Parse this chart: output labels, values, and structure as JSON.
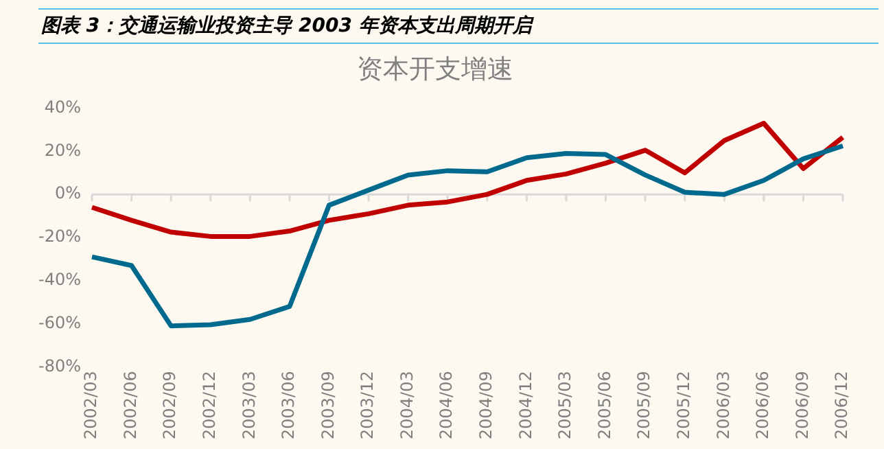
{
  "chart_data": {
    "type": "line",
    "title": "资本开支增速",
    "annotations": [
      "图表 3：交通运输业投资主导 2003 年资本支出周期开启"
    ],
    "categories": [
      "2002/03",
      "2002/06",
      "2002/09",
      "2002/12",
      "2003/03",
      "2003/06",
      "2003/09",
      "2003/12",
      "2004/03",
      "2004/06",
      "2004/09",
      "2004/12",
      "2005/03",
      "2005/06",
      "2005/09",
      "2005/12",
      "2006/03",
      "2006/06",
      "2006/09",
      "2006/12"
    ],
    "series": [
      {
        "color": "#006a8e",
        "values": [
          -29,
          -33,
          -61,
          -60.5,
          -58,
          -52,
          -5,
          2,
          9,
          11,
          10.5,
          17,
          19,
          18.5,
          9,
          1,
          0,
          6.5,
          16.5,
          22.5
        ]
      },
      {
        "color": "#c00000",
        "values": [
          -6,
          -12,
          -17.5,
          -19.5,
          -19.5,
          -17,
          -12,
          -9,
          -5,
          -3.5,
          0,
          6.5,
          9.5,
          14.5,
          20.5,
          10,
          25,
          33,
          12,
          26.5
        ]
      }
    ],
    "ylim": [
      -80,
      40
    ],
    "yticks": [
      {
        "value": -80,
        "label": "-80%"
      },
      {
        "value": -60,
        "label": "-60%"
      },
      {
        "value": -40,
        "label": "-40%"
      },
      {
        "value": -20,
        "label": "-20%"
      },
      {
        "value": 0,
        "label": "0%"
      },
      {
        "value": 20,
        "label": "20%"
      },
      {
        "value": 40,
        "label": "40%"
      }
    ],
    "ref_lines": [
      {
        "axis": "y",
        "value": 0,
        "color": "#d9d9d9"
      }
    ],
    "grid": false,
    "legend": false,
    "marker": "none",
    "line_style": "solid"
  }
}
